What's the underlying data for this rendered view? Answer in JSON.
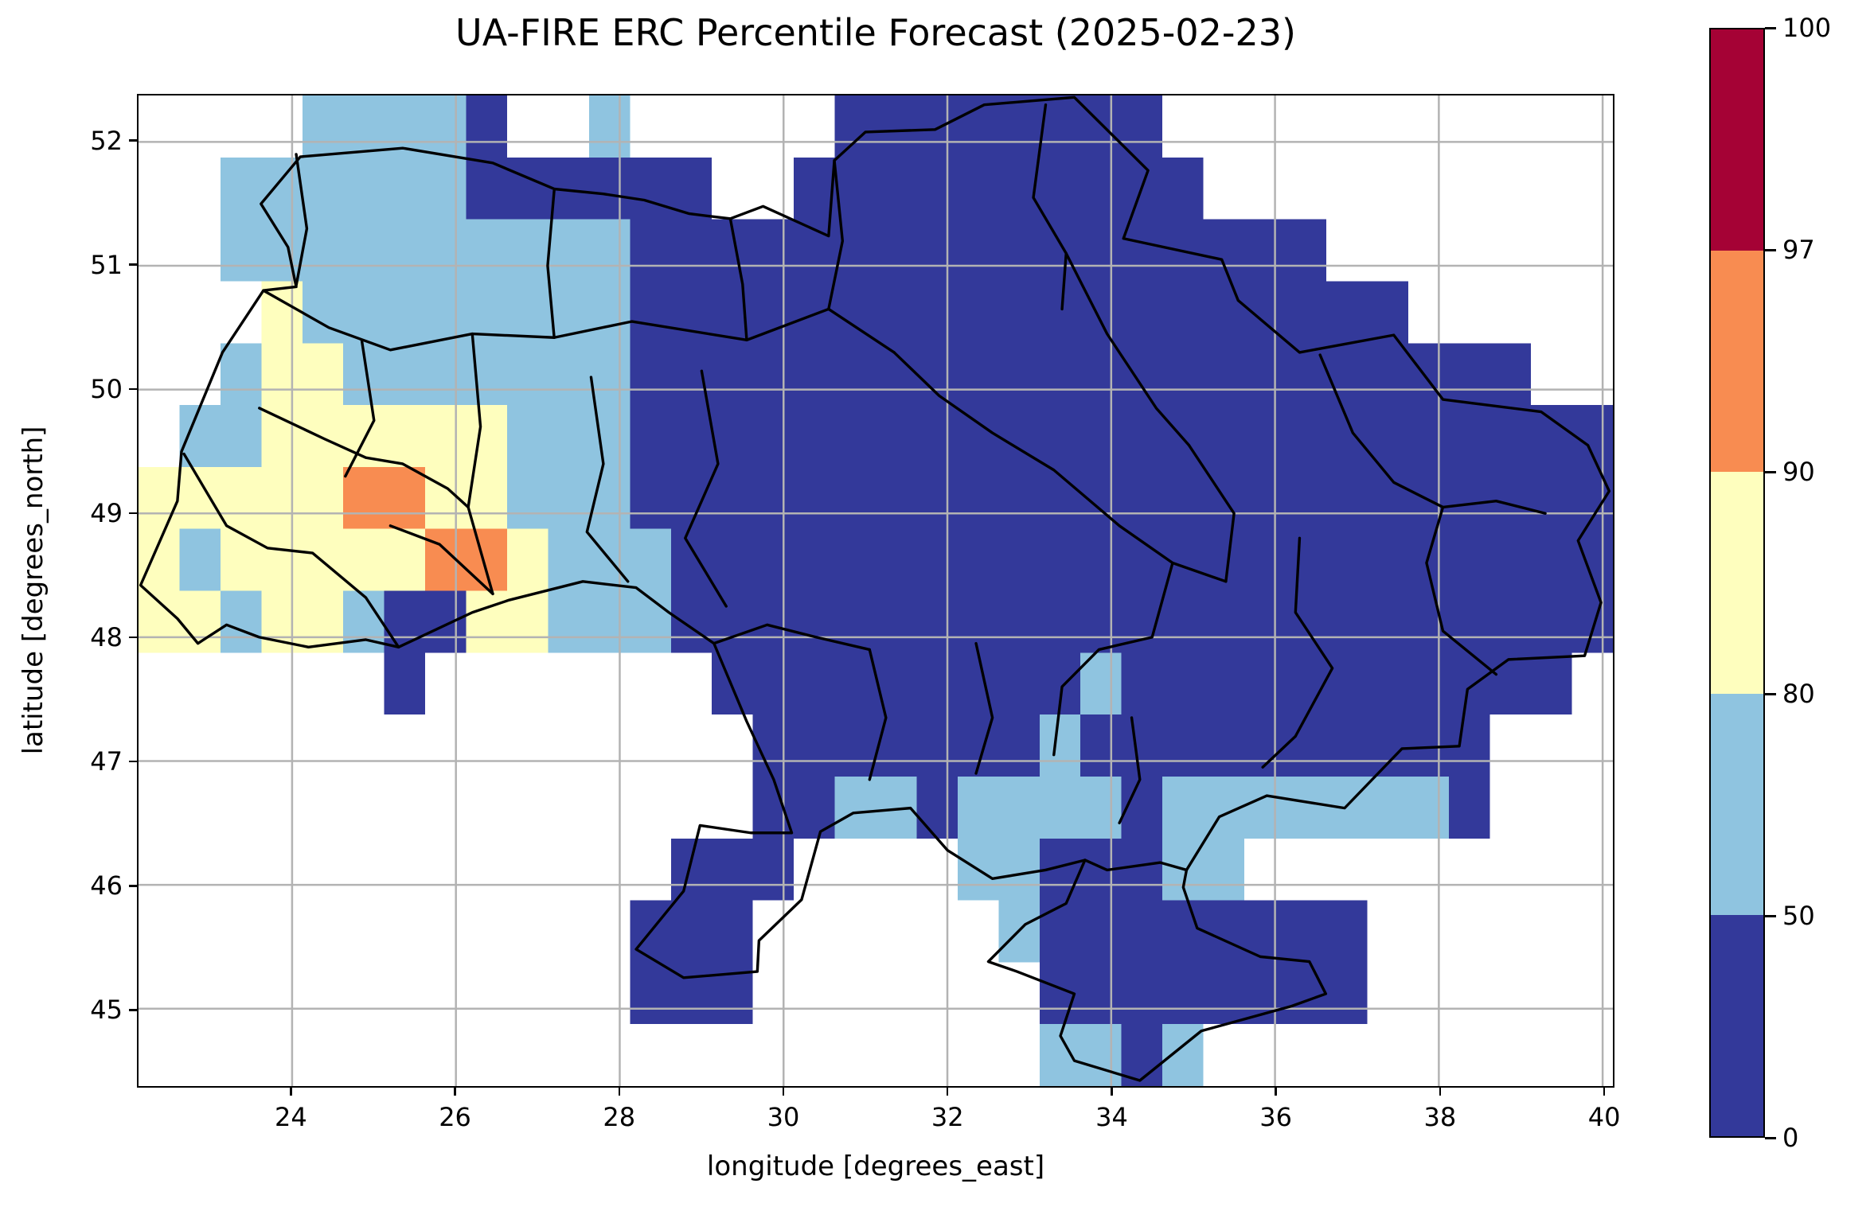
{
  "chart_data": {
    "type": "heatmap",
    "title": "UA-FIRE ERC Percentile Forecast (2025-02-23)",
    "xlabel": "longitude [degrees_east]",
    "ylabel": "latitude [degrees_north]",
    "xlim": [
      22.125,
      40.125
    ],
    "ylim": [
      44.375,
      52.375
    ],
    "xticks": [
      24,
      26,
      28,
      30,
      32,
      34,
      36,
      38,
      40
    ],
    "yticks": [
      45,
      46,
      47,
      48,
      49,
      50,
      51,
      52
    ],
    "grid_on": true,
    "gridline_color": "#b3b3b3",
    "boundary_color": "#000000",
    "legend_levels": [
      0,
      50,
      80,
      90,
      97,
      100
    ],
    "value_bins": {
      "1": "0-50",
      "2": "50-80",
      "3": "80-90",
      "4": "90-97",
      "5": "97-100",
      ".": "no data"
    },
    "bin_colors": {
      "1": "#33399a",
      "2": "#8fc4e0",
      "3": "#fefebe",
      "4": "#f88c51",
      "5": "#a50235"
    },
    "grid_resolution_deg": 0.5,
    "grid_origin": {
      "lon_min": 22.125,
      "lat_max": 52.375
    },
    "grid_rows_top_to_bottom": [
      "....22221..2.....11111111...........",
      "..222222111111..1111111111..........",
      "..222222222211111111111111111.......",
      "...3222222221111111111111111111.....",
      "..23322222221111111111111111111111..",
      ".22333333222111111111111111111111111.",
      "333334433222111111111111111111111111",
      "323333344322211111111111111111111111",
      "332332113322211111111111111111111111",
      "......1.......111111111211111111111.",
      "...............111111121111111111...",
      "...............112212222122222221...",
      ".............111....2211122.........",
      "............111......211111111......",
      "............111.......11111111......",
      "......................2212.........."
    ]
  },
  "colorbar": {
    "orientation": "vertical",
    "boundary_labels_top_to_bottom": [
      "100",
      "97",
      "90",
      "80",
      "50",
      "0"
    ],
    "segment_colors_top_to_bottom": [
      "#a50235",
      "#f88c51",
      "#fefebe",
      "#8fc4e0",
      "#33399a"
    ]
  },
  "axes": {
    "frame_color": "#000000",
    "tick_color": "#000000",
    "text_color": "#000000",
    "background": "#ffffff"
  }
}
